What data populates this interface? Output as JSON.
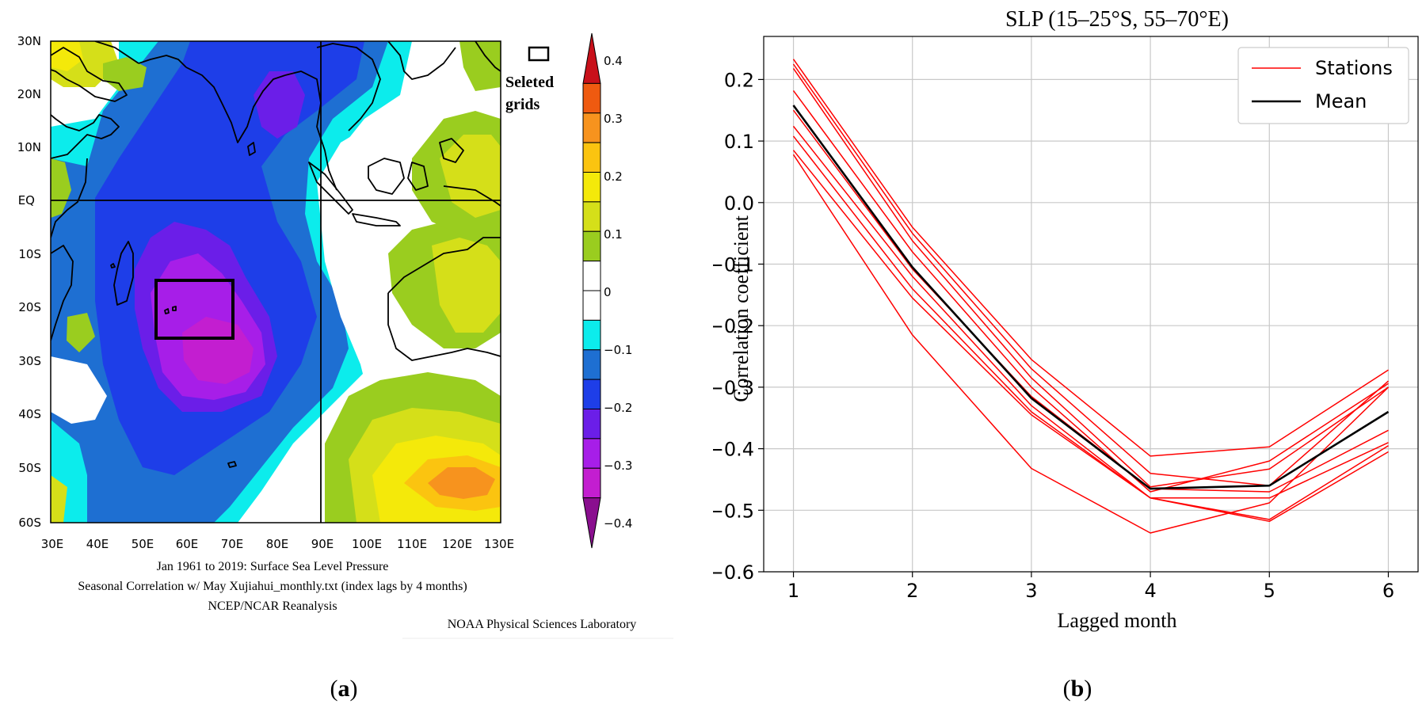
{
  "panel_a": {
    "label_paren_open": "(",
    "label_letter": "a",
    "label_paren_close": ")",
    "lat_labels": [
      "30N",
      "20N",
      "10N",
      "EQ",
      "10S",
      "20S",
      "30S",
      "40S",
      "50S",
      "60S"
    ],
    "lon_labels": [
      "30E",
      "40E",
      "50E",
      "60E",
      "70E",
      "80E",
      "90E",
      "100E",
      "110E",
      "120E",
      "130E"
    ],
    "legend_line1": "Seleted",
    "legend_line2": "grids",
    "colorbar_labels": [
      "0.4",
      "0.3",
      "0.2",
      "0.1",
      "0",
      "−0.1",
      "−0.2",
      "−0.3",
      "−0.4"
    ],
    "colorbar_colors": [
      "#c8101a",
      "#ef5a10",
      "#f7931e",
      "#fbc410",
      "#f4e90a",
      "#d5df19",
      "#9acd1f",
      "#ffffff",
      "#ffffff",
      "#0cecec",
      "#1e6fd2",
      "#1e3ee8",
      "#6b1ee8",
      "#a71ee8",
      "#c31ed0",
      "#8a0f8f"
    ],
    "caption_line1": "Jan 1961 to 2019: Surface Sea Level Pressure",
    "caption_line2": "Seasonal Correlation w/ May Xujiahui_monthly.txt (index lags by 4 months)",
    "caption_line3": "NCEP/NCAR Reanalysis",
    "credit": "NOAA Physical Sciences Laboratory",
    "colors": {
      "lightblue": "#0cecec",
      "blue1": "#1e6fd2",
      "blue2": "#1e3ee8",
      "violet": "#6b1ee8",
      "purple": "#a71ee8",
      "magenta": "#c31ed0",
      "yellowgreen": "#9acd1f",
      "lime": "#d5df19",
      "yellow": "#f4e90a",
      "gold": "#fbc410",
      "orange": "#f7931e"
    }
  },
  "panel_b": {
    "label_paren_open": "(",
    "label_letter": "b",
    "label_paren_close": ")"
  },
  "chart_data": {
    "type": "line",
    "title": "SLP (15–25°S, 55–70°E)",
    "xlabel": "Lagged month",
    "ylabel": "Correlation coefficient",
    "x": [
      1,
      2,
      3,
      4,
      5,
      6
    ],
    "xlim": [
      0.75,
      6.25
    ],
    "ylim": [
      -0.6,
      0.27
    ],
    "xticks": [
      "1",
      "2",
      "3",
      "4",
      "5",
      "6"
    ],
    "yticks": [
      "0.2",
      "0.1",
      "0.0",
      "−0.1",
      "−0.2",
      "−0.3",
      "−0.4",
      "−0.5",
      "−0.6"
    ],
    "ytick_values": [
      0.2,
      0.1,
      0.0,
      -0.1,
      -0.2,
      -0.3,
      -0.4,
      -0.5,
      -0.6
    ],
    "grid": true,
    "legend": {
      "placement": "top-right",
      "labels": [
        "Stations",
        "Mean"
      ]
    },
    "station_color": "#ff0000",
    "mean_color": "#000000",
    "series": [
      {
        "name": "Stations",
        "values": [
          0.233,
          -0.04,
          -0.255,
          -0.412,
          -0.397,
          -0.272
        ]
      },
      {
        "name": "Stations",
        "values": [
          0.225,
          -0.05,
          -0.27,
          -0.44,
          -0.46,
          -0.29
        ]
      },
      {
        "name": "Stations",
        "values": [
          0.218,
          -0.062,
          -0.285,
          -0.462,
          -0.433,
          -0.3
        ]
      },
      {
        "name": "Stations",
        "values": [
          0.182,
          -0.08,
          -0.3,
          -0.47,
          -0.42,
          -0.294
        ]
      },
      {
        "name": "Stations",
        "values": [
          0.15,
          -0.108,
          -0.315,
          -0.465,
          -0.47,
          -0.37
        ]
      },
      {
        "name": "Stations",
        "values": [
          0.124,
          -0.12,
          -0.33,
          -0.48,
          -0.48,
          -0.39
        ]
      },
      {
        "name": "Stations",
        "values": [
          0.108,
          -0.14,
          -0.34,
          -0.48,
          -0.515,
          -0.395
        ]
      },
      {
        "name": "Stations",
        "values": [
          0.085,
          -0.155,
          -0.345,
          -0.48,
          -0.518,
          -0.405
        ]
      },
      {
        "name": "Stations",
        "values": [
          0.078,
          -0.215,
          -0.432,
          -0.537,
          -0.488,
          -0.3
        ]
      },
      {
        "name": "Mean",
        "values": [
          0.158,
          -0.105,
          -0.318,
          -0.465,
          -0.46,
          -0.34
        ]
      }
    ]
  }
}
